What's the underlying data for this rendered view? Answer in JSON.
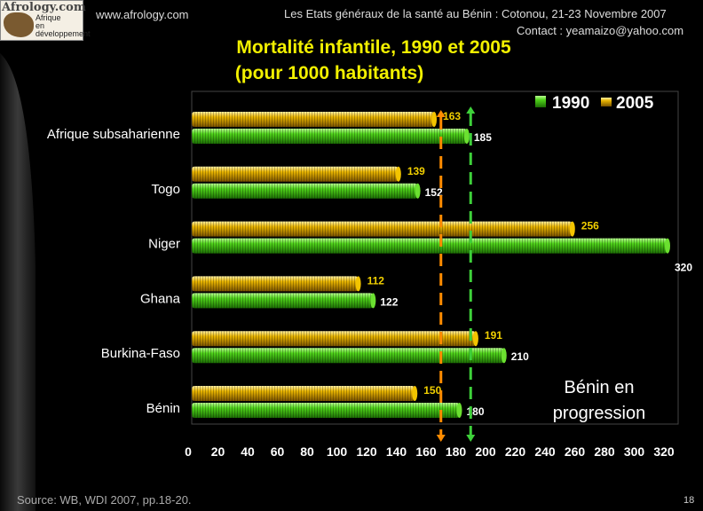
{
  "header": {
    "site": "www.afrology.com",
    "event": "Les Etats généraux de la santé au Bénin : Cotonou, 21-23 Novembre 2007",
    "contact": "Contact : yeamaizo@yahoo.com",
    "logo": {
      "brand": "Afrology.com",
      "tagline_1": "Afrique",
      "tagline_2": "en",
      "tagline_3": "développement"
    }
  },
  "title": {
    "line1": "Mortalité infantile, 1990 et 2005",
    "line2": "(pour 1000 habitants)"
  },
  "annotation": {
    "line1": "Bénin en",
    "line2": "progression"
  },
  "footer": {
    "source": "Source: WB, WDI 2007, pp.18-20.",
    "page": "18"
  },
  "colors": {
    "bar_1990": "#4fd21a",
    "bar_2005": "#e8b400",
    "label_1990": "#ffffff",
    "label_2005": "#f2d000",
    "ref_1990": "#3ed13a",
    "ref_2005": "#ff8c00"
  },
  "chart_data": {
    "type": "bar",
    "orientation": "horizontal",
    "categories": [
      "Afrique subsaharienne",
      "Togo",
      "Niger",
      "Ghana",
      "Burkina-Faso",
      "Bénin"
    ],
    "series": [
      {
        "name": "1990",
        "values": [
          185,
          152,
          320,
          122,
          210,
          180
        ]
      },
      {
        "name": "2005",
        "values": [
          163,
          139,
          256,
          112,
          191,
          150
        ]
      }
    ],
    "xlim": [
      0,
      320
    ],
    "xticks": [
      0,
      20,
      40,
      60,
      80,
      100,
      120,
      140,
      160,
      180,
      200,
      220,
      240,
      260,
      280,
      300,
      320
    ],
    "grid": false,
    "legend": "top-right",
    "reference_lines": [
      {
        "series": "2005",
        "value": 170
      },
      {
        "series": "1990",
        "value": 190
      }
    ]
  }
}
